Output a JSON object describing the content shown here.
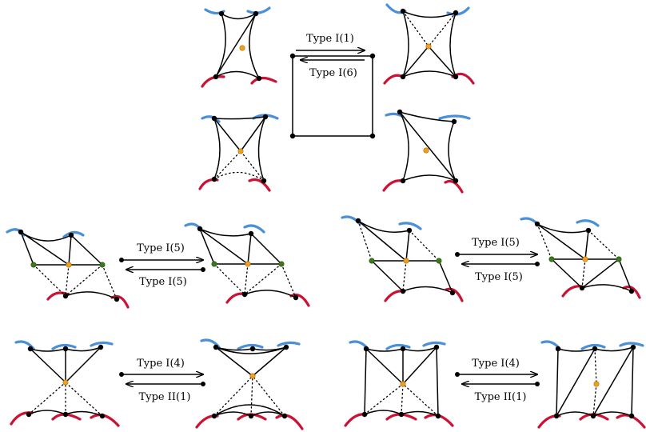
{
  "colors": {
    "blue": "#4a90d9",
    "red": "#cc1133",
    "orange": "#f0a020",
    "green": "#3a7a1a",
    "black": "#000000"
  },
  "labels": {
    "top_upper": "Type I(1)",
    "top_lower": "Type I(6)",
    "mid_left_upper": "Type I(5)",
    "mid_left_lower": "Type I(5)",
    "mid_right_upper": "Type I(5)",
    "mid_right_lower": "Type I(5)",
    "bot_left_upper": "Type I(4)",
    "bot_left_lower": "Type II(1)",
    "bot_right_upper": "Type I(4)",
    "bot_right_lower": "Type II(1)"
  }
}
